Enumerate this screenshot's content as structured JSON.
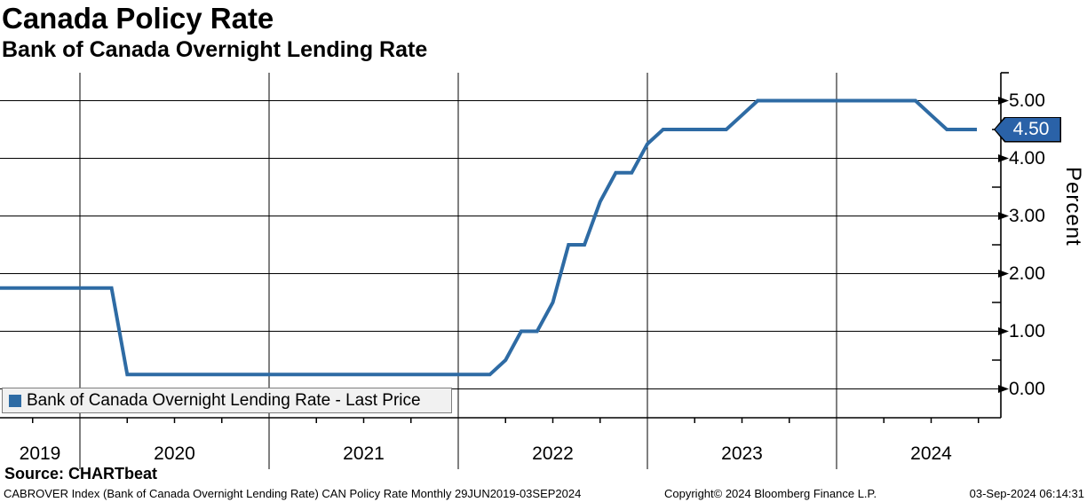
{
  "header": {
    "title": "Canada Policy Rate",
    "subtitle": "Bank of Canada Overnight Lending Rate"
  },
  "legend": {
    "label": "Bank of Canada Overnight Lending Rate - Last Price",
    "marker_color": "#2e6ba4"
  },
  "footer": {
    "source": "Source: CHARTbeat",
    "description": "CABROVER Index (Bank of Canada Overnight Lending Rate) CAN Policy Rate  Monthly 29JUN2019-03SEP2024",
    "copyright": "Copyright© 2024 Bloomberg Finance L.P.",
    "timestamp": "03-Sep-2024 06:14:31"
  },
  "chart_data": {
    "type": "line",
    "title": "Canada Policy Rate",
    "subtitle": "Bank of Canada Overnight Lending Rate",
    "ylabel": "Percent",
    "ylim": [
      -0.5,
      5.485
    ],
    "xlim_years": [
      2019.577,
      2024.868
    ],
    "grid": "major-both",
    "legend_position": "bottom-left",
    "y_ticks": [
      5,
      4,
      3,
      2,
      1,
      0
    ],
    "y_tick_labels": [
      "5.00",
      "4.00",
      "3.00",
      "2.00",
      "1.00",
      "0.00"
    ],
    "y_minor_ticks": [
      0.5,
      1.5,
      2.5,
      3.5,
      4.5
    ],
    "x_tick_years": [
      2019,
      2020,
      2021,
      2022,
      2023,
      2024
    ],
    "x_minor_step_years": 0.25,
    "last_price": {
      "label": "4.50",
      "value": 4.5,
      "badge_color": "#2a62a8",
      "text_color": "#ffffff"
    },
    "series": [
      {
        "name": "Bank of Canada Overnight Lending Rate - Last Price",
        "color": "#2e6ba4",
        "points": [
          [
            "2019-06",
            2019.5,
            1.75
          ],
          [
            "2019-07",
            2019.583,
            1.75
          ],
          [
            "2019-08",
            2019.667,
            1.75
          ],
          [
            "2019-09",
            2019.75,
            1.75
          ],
          [
            "2019-10",
            2019.833,
            1.75
          ],
          [
            "2019-11",
            2019.917,
            1.75
          ],
          [
            "2019-12",
            2020.0,
            1.75
          ],
          [
            "2020-01",
            2020.083,
            1.75
          ],
          [
            "2020-02",
            2020.167,
            1.75
          ],
          [
            "2020-03",
            2020.25,
            0.25
          ],
          [
            "2020-04",
            2020.333,
            0.25
          ],
          [
            "2020-05",
            2020.417,
            0.25
          ],
          [
            "2020-06",
            2020.5,
            0.25
          ],
          [
            "2020-07",
            2020.583,
            0.25
          ],
          [
            "2020-08",
            2020.667,
            0.25
          ],
          [
            "2020-09",
            2020.75,
            0.25
          ],
          [
            "2020-10",
            2020.833,
            0.25
          ],
          [
            "2020-11",
            2020.917,
            0.25
          ],
          [
            "2020-12",
            2021.0,
            0.25
          ],
          [
            "2021-01",
            2021.083,
            0.25
          ],
          [
            "2021-02",
            2021.167,
            0.25
          ],
          [
            "2021-03",
            2021.25,
            0.25
          ],
          [
            "2021-04",
            2021.333,
            0.25
          ],
          [
            "2021-05",
            2021.417,
            0.25
          ],
          [
            "2021-06",
            2021.5,
            0.25
          ],
          [
            "2021-07",
            2021.583,
            0.25
          ],
          [
            "2021-08",
            2021.667,
            0.25
          ],
          [
            "2021-09",
            2021.75,
            0.25
          ],
          [
            "2021-10",
            2021.833,
            0.25
          ],
          [
            "2021-11",
            2021.917,
            0.25
          ],
          [
            "2021-12",
            2022.0,
            0.25
          ],
          [
            "2022-01",
            2022.083,
            0.25
          ],
          [
            "2022-02",
            2022.167,
            0.25
          ],
          [
            "2022-03",
            2022.25,
            0.5
          ],
          [
            "2022-04",
            2022.333,
            1.0
          ],
          [
            "2022-05",
            2022.417,
            1.0
          ],
          [
            "2022-06",
            2022.5,
            1.5
          ],
          [
            "2022-07",
            2022.583,
            2.5
          ],
          [
            "2022-08",
            2022.667,
            2.5
          ],
          [
            "2022-09",
            2022.75,
            3.25
          ],
          [
            "2022-10",
            2022.833,
            3.75
          ],
          [
            "2022-11",
            2022.917,
            3.75
          ],
          [
            "2022-12",
            2023.0,
            4.25
          ],
          [
            "2023-01",
            2023.083,
            4.5
          ],
          [
            "2023-02",
            2023.167,
            4.5
          ],
          [
            "2023-03",
            2023.25,
            4.5
          ],
          [
            "2023-04",
            2023.333,
            4.5
          ],
          [
            "2023-05",
            2023.417,
            4.5
          ],
          [
            "2023-06",
            2023.5,
            4.75
          ],
          [
            "2023-07",
            2023.583,
            5.0
          ],
          [
            "2023-08",
            2023.667,
            5.0
          ],
          [
            "2023-09",
            2023.75,
            5.0
          ],
          [
            "2023-10",
            2023.833,
            5.0
          ],
          [
            "2023-11",
            2023.917,
            5.0
          ],
          [
            "2023-12",
            2024.0,
            5.0
          ],
          [
            "2024-01",
            2024.083,
            5.0
          ],
          [
            "2024-02",
            2024.167,
            5.0
          ],
          [
            "2024-03",
            2024.25,
            5.0
          ],
          [
            "2024-04",
            2024.333,
            5.0
          ],
          [
            "2024-05",
            2024.417,
            5.0
          ],
          [
            "2024-06",
            2024.5,
            4.75
          ],
          [
            "2024-07",
            2024.583,
            4.5
          ],
          [
            "2024-08",
            2024.667,
            4.5
          ],
          [
            "2024-09-03",
            2024.742,
            4.5
          ]
        ]
      }
    ]
  }
}
